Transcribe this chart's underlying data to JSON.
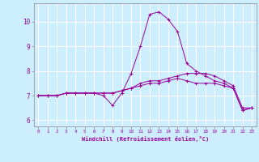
{
  "xlabel": "Windchill (Refroidissement éolien,°C)",
  "background_color": "#cceeff",
  "grid_color": "#ffffff",
  "line_color": "#990099",
  "yticks": [
    6,
    7,
    8,
    9,
    10
  ],
  "xticks": [
    0,
    1,
    2,
    3,
    4,
    5,
    6,
    7,
    8,
    9,
    10,
    11,
    12,
    13,
    14,
    15,
    16,
    17,
    18,
    19,
    20,
    21,
    22,
    23
  ],
  "series": [
    [
      7.0,
      7.0,
      7.0,
      7.1,
      7.1,
      7.1,
      7.1,
      7.0,
      6.6,
      7.1,
      7.9,
      9.0,
      10.3,
      10.4,
      10.1,
      9.6,
      8.3,
      8.0,
      7.8,
      7.6,
      7.5,
      7.3,
      6.4,
      6.5
    ],
    [
      7.0,
      7.0,
      7.0,
      7.1,
      7.1,
      7.1,
      7.1,
      7.1,
      7.1,
      7.2,
      7.3,
      7.5,
      7.6,
      7.6,
      7.7,
      7.8,
      7.9,
      7.9,
      7.9,
      7.8,
      7.6,
      7.4,
      6.5,
      6.5
    ],
    [
      7.0,
      7.0,
      7.0,
      7.1,
      7.1,
      7.1,
      7.1,
      7.1,
      7.1,
      7.2,
      7.3,
      7.4,
      7.5,
      7.5,
      7.6,
      7.7,
      7.6,
      7.5,
      7.5,
      7.5,
      7.4,
      7.3,
      6.4,
      6.5
    ]
  ]
}
